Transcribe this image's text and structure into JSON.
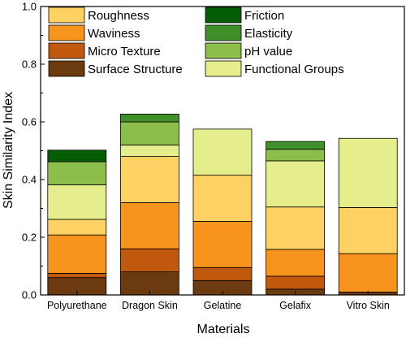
{
  "chart_data": {
    "type": "bar",
    "stacked": true,
    "xlabel": "Materials",
    "ylabel": "Skin Similarity Index",
    "ylim": [
      0.0,
      1.0
    ],
    "yticks": [
      "0.0",
      "0.2",
      "0.4",
      "0.6",
      "0.8",
      "1.0"
    ],
    "grid": false,
    "legend_position": "top",
    "categories": [
      "Polyurethane",
      "Dragon Skin",
      "Gelatine",
      "Gelafix",
      "Vitro Skin"
    ],
    "series": [
      {
        "name": "Surface Structure",
        "color": "#6b3a0f",
        "values": [
          0.06,
          0.08,
          0.05,
          0.02,
          0.01
        ]
      },
      {
        "name": "Micro Texture",
        "color": "#c0580d",
        "values": [
          0.015,
          0.08,
          0.045,
          0.045,
          0.0
        ]
      },
      {
        "name": "Waviness",
        "color": "#f7941d",
        "values": [
          0.133,
          0.16,
          0.16,
          0.093,
          0.133
        ]
      },
      {
        "name": "Roughness",
        "color": "#fdd262",
        "values": [
          0.054,
          0.16,
          0.16,
          0.147,
          0.16
        ]
      },
      {
        "name": "Functional Groups",
        "color": "#e6ee8c",
        "values": [
          0.12,
          0.04,
          0.16,
          0.16,
          0.24
        ]
      },
      {
        "name": "pH value",
        "color": "#8dbd4a",
        "values": [
          0.08,
          0.08,
          0.0,
          0.04,
          0.0
        ]
      },
      {
        "name": "Elasticity",
        "color": "#3f8f2a",
        "values": [
          0.0,
          0.027,
          0.0,
          0.027,
          0.0
        ]
      },
      {
        "name": "Friction",
        "color": "#045d04",
        "values": [
          0.04,
          0.0,
          0.0,
          0.0,
          0.0
        ]
      }
    ],
    "legend_order": [
      "Roughness",
      "Friction",
      "Waviness",
      "Elasticity",
      "Micro Texture",
      "pH value",
      "Surface Structure",
      "Functional Groups"
    ]
  }
}
